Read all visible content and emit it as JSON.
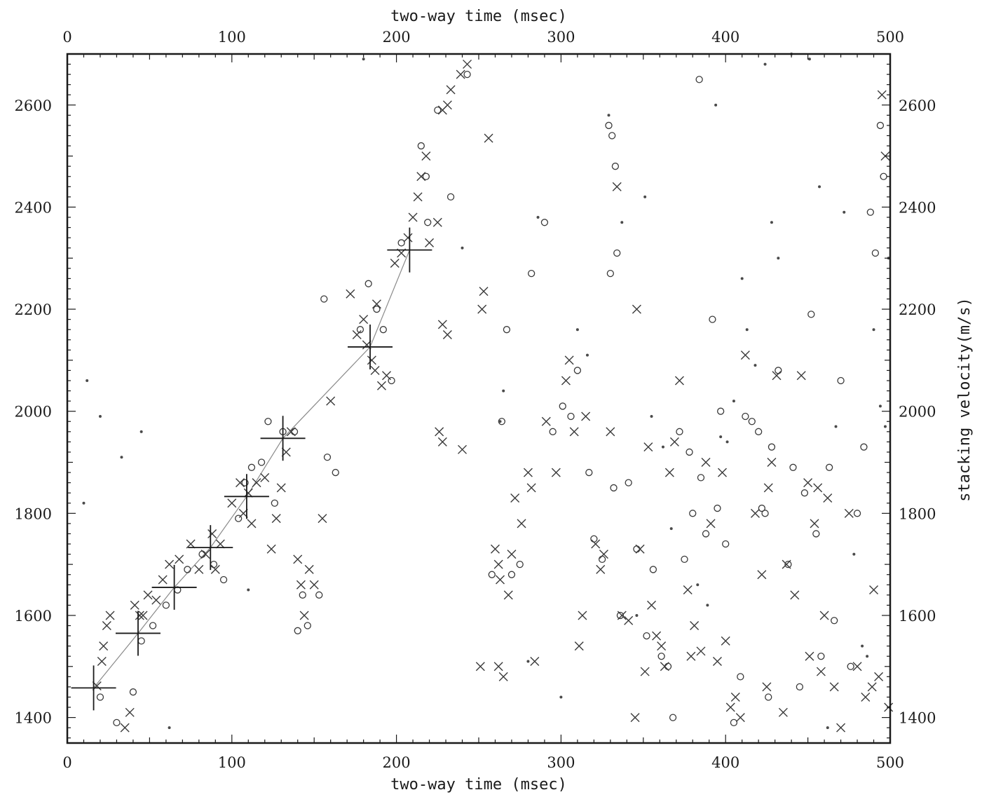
{
  "chart_data": {
    "type": "scatter",
    "title": "",
    "xlabel": "two-way time (msec)",
    "ylabel": "stacking velocity(m/s)",
    "xlim": [
      0,
      500
    ],
    "ylim": [
      1350,
      2700
    ],
    "x_ticks": [
      0,
      100,
      200,
      300,
      400,
      500
    ],
    "y_ticks": [
      1400,
      1600,
      1800,
      2000,
      2200,
      2400,
      2600
    ],
    "x_ticks_top": [
      0,
      100,
      200,
      300,
      400,
      500
    ],
    "y_ticks_right": [
      1400,
      1600,
      1800,
      2000,
      2200,
      2400,
      2600
    ],
    "grid": false,
    "legend": "none",
    "velocity_picks": [
      {
        "t": 16,
        "v": 1458
      },
      {
        "t": 43,
        "v": 1565
      },
      {
        "t": 65,
        "v": 1655
      },
      {
        "t": 87,
        "v": 1733
      },
      {
        "t": 109,
        "v": 1833
      },
      {
        "t": 131,
        "v": 1947
      },
      {
        "t": 184,
        "v": 2126
      },
      {
        "t": 208,
        "v": 2316
      }
    ],
    "series": [
      {
        "marker": "x",
        "points": [
          [
            18,
            1462
          ],
          [
            21,
            1510
          ],
          [
            22,
            1540
          ],
          [
            24,
            1580
          ],
          [
            26,
            1600
          ],
          [
            35,
            1380
          ],
          [
            38,
            1410
          ],
          [
            41,
            1620
          ],
          [
            44,
            1600
          ],
          [
            46,
            1600
          ],
          [
            49,
            1640
          ],
          [
            54,
            1630
          ],
          [
            58,
            1670
          ],
          [
            62,
            1700
          ],
          [
            68,
            1710
          ],
          [
            75,
            1740
          ],
          [
            80,
            1690
          ],
          [
            84,
            1720
          ],
          [
            88,
            1760
          ],
          [
            90,
            1690
          ],
          [
            93,
            1740
          ],
          [
            100,
            1820
          ],
          [
            105,
            1860
          ],
          [
            107,
            1800
          ],
          [
            110,
            1840
          ],
          [
            112,
            1780
          ],
          [
            115,
            1860
          ],
          [
            120,
            1870
          ],
          [
            124,
            1730
          ],
          [
            127,
            1790
          ],
          [
            130,
            1850
          ],
          [
            133,
            1920
          ],
          [
            136,
            1960
          ],
          [
            140,
            1710
          ],
          [
            142,
            1660
          ],
          [
            144,
            1600
          ],
          [
            147,
            1690
          ],
          [
            150,
            1660
          ],
          [
            155,
            1790
          ],
          [
            160,
            2020
          ],
          [
            172,
            2230
          ],
          [
            176,
            2150
          ],
          [
            180,
            2180
          ],
          [
            182,
            2130
          ],
          [
            185,
            2100
          ],
          [
            187,
            2080
          ],
          [
            188,
            2210
          ],
          [
            191,
            2050
          ],
          [
            194,
            2070
          ],
          [
            199,
            2290
          ],
          [
            203,
            2310
          ],
          [
            207,
            2340
          ],
          [
            210,
            2380
          ],
          [
            213,
            2420
          ],
          [
            215,
            2460
          ],
          [
            218,
            2500
          ],
          [
            220,
            2330
          ],
          [
            225,
            2370
          ],
          [
            228,
            2590
          ],
          [
            231,
            2600
          ],
          [
            233,
            2630
          ],
          [
            239,
            2660
          ],
          [
            243,
            2680
          ],
          [
            228,
            2170
          ],
          [
            231,
            2150
          ],
          [
            226,
            1960
          ],
          [
            228,
            1940
          ],
          [
            240,
            1925
          ],
          [
            251,
            1500
          ],
          [
            253,
            2235
          ],
          [
            252,
            2200
          ],
          [
            256,
            2535
          ],
          [
            260,
            1730
          ],
          [
            262,
            1700
          ],
          [
            263,
            1670
          ],
          [
            262,
            1500
          ],
          [
            265,
            1480
          ],
          [
            268,
            1640
          ],
          [
            270,
            1720
          ],
          [
            272,
            1830
          ],
          [
            276,
            1780
          ],
          [
            280,
            1880
          ],
          [
            282,
            1850
          ],
          [
            284,
            1510
          ],
          [
            291,
            1980
          ],
          [
            297,
            1880
          ],
          [
            303,
            2060
          ],
          [
            305,
            2100
          ],
          [
            308,
            1960
          ],
          [
            311,
            1540
          ],
          [
            313,
            1600
          ],
          [
            315,
            1990
          ],
          [
            321,
            1740
          ],
          [
            324,
            1690
          ],
          [
            326,
            1720
          ],
          [
            330,
            1960
          ],
          [
            334,
            2440
          ],
          [
            337,
            1600
          ],
          [
            341,
            1590
          ],
          [
            345,
            1400
          ],
          [
            346,
            2200
          ],
          [
            348,
            1730
          ],
          [
            351,
            1490
          ],
          [
            353,
            1930
          ],
          [
            355,
            1620
          ],
          [
            358,
            1560
          ],
          [
            361,
            1540
          ],
          [
            363,
            1500
          ],
          [
            366,
            1880
          ],
          [
            369,
            1940
          ],
          [
            372,
            2060
          ],
          [
            377,
            1650
          ],
          [
            379,
            1520
          ],
          [
            381,
            1580
          ],
          [
            385,
            1530
          ],
          [
            388,
            1900
          ],
          [
            391,
            1780
          ],
          [
            395,
            1510
          ],
          [
            398,
            1880
          ],
          [
            400,
            1550
          ],
          [
            403,
            1420
          ],
          [
            406,
            1440
          ],
          [
            409,
            1400
          ],
          [
            412,
            2110
          ],
          [
            418,
            1800
          ],
          [
            422,
            1680
          ],
          [
            425,
            1460
          ],
          [
            426,
            1850
          ],
          [
            428,
            1900
          ],
          [
            431,
            2070
          ],
          [
            435,
            1410
          ],
          [
            437,
            1700
          ],
          [
            442,
            1640
          ],
          [
            446,
            2070
          ],
          [
            450,
            1860
          ],
          [
            451,
            1520
          ],
          [
            454,
            1780
          ],
          [
            456,
            1850
          ],
          [
            458,
            1490
          ],
          [
            460,
            1600
          ],
          [
            462,
            1830
          ],
          [
            466,
            1460
          ],
          [
            470,
            1380
          ],
          [
            475,
            1800
          ],
          [
            480,
            1500
          ],
          [
            485,
            1440
          ],
          [
            489,
            1460
          ],
          [
            490,
            1650
          ],
          [
            493,
            1480
          ],
          [
            495,
            2620
          ],
          [
            497,
            2500
          ],
          [
            499,
            1420
          ]
        ]
      },
      {
        "marker": "o",
        "points": [
          [
            20,
            1440
          ],
          [
            30,
            1390
          ],
          [
            40,
            1450
          ],
          [
            45,
            1550
          ],
          [
            52,
            1580
          ],
          [
            60,
            1620
          ],
          [
            67,
            1650
          ],
          [
            73,
            1690
          ],
          [
            82,
            1720
          ],
          [
            89,
            1700
          ],
          [
            95,
            1670
          ],
          [
            104,
            1790
          ],
          [
            108,
            1860
          ],
          [
            112,
            1890
          ],
          [
            118,
            1900
          ],
          [
            122,
            1980
          ],
          [
            126,
            1820
          ],
          [
            131,
            1960
          ],
          [
            138,
            1960
          ],
          [
            140,
            1570
          ],
          [
            143,
            1640
          ],
          [
            146,
            1580
          ],
          [
            153,
            1640
          ],
          [
            156,
            2220
          ],
          [
            158,
            1910
          ],
          [
            163,
            1880
          ],
          [
            178,
            2160
          ],
          [
            183,
            2250
          ],
          [
            188,
            2200
          ],
          [
            192,
            2160
          ],
          [
            197,
            2060
          ],
          [
            203,
            2330
          ],
          [
            215,
            2520
          ],
          [
            218,
            2460
          ],
          [
            219,
            2370
          ],
          [
            225,
            2590
          ],
          [
            233,
            2420
          ],
          [
            243,
            2660
          ],
          [
            258,
            1680
          ],
          [
            264,
            1980
          ],
          [
            267,
            2160
          ],
          [
            270,
            1680
          ],
          [
            275,
            1700
          ],
          [
            282,
            2270
          ],
          [
            290,
            2370
          ],
          [
            295,
            1960
          ],
          [
            301,
            2010
          ],
          [
            306,
            1990
          ],
          [
            310,
            2080
          ],
          [
            317,
            1880
          ],
          [
            320,
            1750
          ],
          [
            325,
            1710
          ],
          [
            329,
            2560
          ],
          [
            331,
            2540
          ],
          [
            333,
            2480
          ],
          [
            334,
            2310
          ],
          [
            330,
            2270
          ],
          [
            332,
            1850
          ],
          [
            336,
            1600
          ],
          [
            341,
            1860
          ],
          [
            346,
            1730
          ],
          [
            352,
            1560
          ],
          [
            356,
            1690
          ],
          [
            361,
            1520
          ],
          [
            365,
            1500
          ],
          [
            368,
            1400
          ],
          [
            372,
            1960
          ],
          [
            375,
            1710
          ],
          [
            378,
            1920
          ],
          [
            380,
            1800
          ],
          [
            384,
            2650
          ],
          [
            385,
            1870
          ],
          [
            388,
            1760
          ],
          [
            392,
            2180
          ],
          [
            395,
            1810
          ],
          [
            397,
            2000
          ],
          [
            400,
            1740
          ],
          [
            405,
            1390
          ],
          [
            409,
            1480
          ],
          [
            412,
            1990
          ],
          [
            416,
            1980
          ],
          [
            420,
            1960
          ],
          [
            422,
            1810
          ],
          [
            424,
            1800
          ],
          [
            426,
            1440
          ],
          [
            428,
            1930
          ],
          [
            432,
            2080
          ],
          [
            438,
            1700
          ],
          [
            441,
            1890
          ],
          [
            445,
            1460
          ],
          [
            448,
            1840
          ],
          [
            452,
            2190
          ],
          [
            455,
            1760
          ],
          [
            458,
            1520
          ],
          [
            463,
            1890
          ],
          [
            466,
            1590
          ],
          [
            470,
            2060
          ],
          [
            476,
            1500
          ],
          [
            480,
            1800
          ],
          [
            484,
            1930
          ],
          [
            488,
            2390
          ],
          [
            491,
            2310
          ],
          [
            494,
            2560
          ],
          [
            496,
            2460
          ]
        ]
      },
      {
        "marker": "dot",
        "points": [
          [
            10,
            1820
          ],
          [
            12,
            2060
          ],
          [
            20,
            1990
          ],
          [
            33,
            1910
          ],
          [
            45,
            1960
          ],
          [
            62,
            1380
          ],
          [
            110,
            1650
          ],
          [
            180,
            2690
          ],
          [
            240,
            2320
          ],
          [
            263,
            1980
          ],
          [
            265,
            2040
          ],
          [
            280,
            1510
          ],
          [
            286,
            2380
          ],
          [
            300,
            1440
          ],
          [
            310,
            2160
          ],
          [
            316,
            2110
          ],
          [
            329,
            2580
          ],
          [
            337,
            2370
          ],
          [
            346,
            1600
          ],
          [
            351,
            2420
          ],
          [
            355,
            1990
          ],
          [
            362,
            1930
          ],
          [
            367,
            1770
          ],
          [
            383,
            1660
          ],
          [
            389,
            1620
          ],
          [
            394,
            2600
          ],
          [
            397,
            1950
          ],
          [
            401,
            1940
          ],
          [
            405,
            2020
          ],
          [
            410,
            2260
          ],
          [
            413,
            2160
          ],
          [
            418,
            2090
          ],
          [
            424,
            2680
          ],
          [
            428,
            2370
          ],
          [
            432,
            2300
          ],
          [
            440,
            2700
          ],
          [
            451,
            2690
          ],
          [
            457,
            2440
          ],
          [
            462,
            1380
          ],
          [
            467,
            1970
          ],
          [
            472,
            2390
          ],
          [
            478,
            1720
          ],
          [
            483,
            1540
          ],
          [
            486,
            1520
          ],
          [
            490,
            2160
          ],
          [
            494,
            2010
          ],
          [
            497,
            1970
          ],
          [
            499,
            2300
          ]
        ]
      }
    ]
  }
}
